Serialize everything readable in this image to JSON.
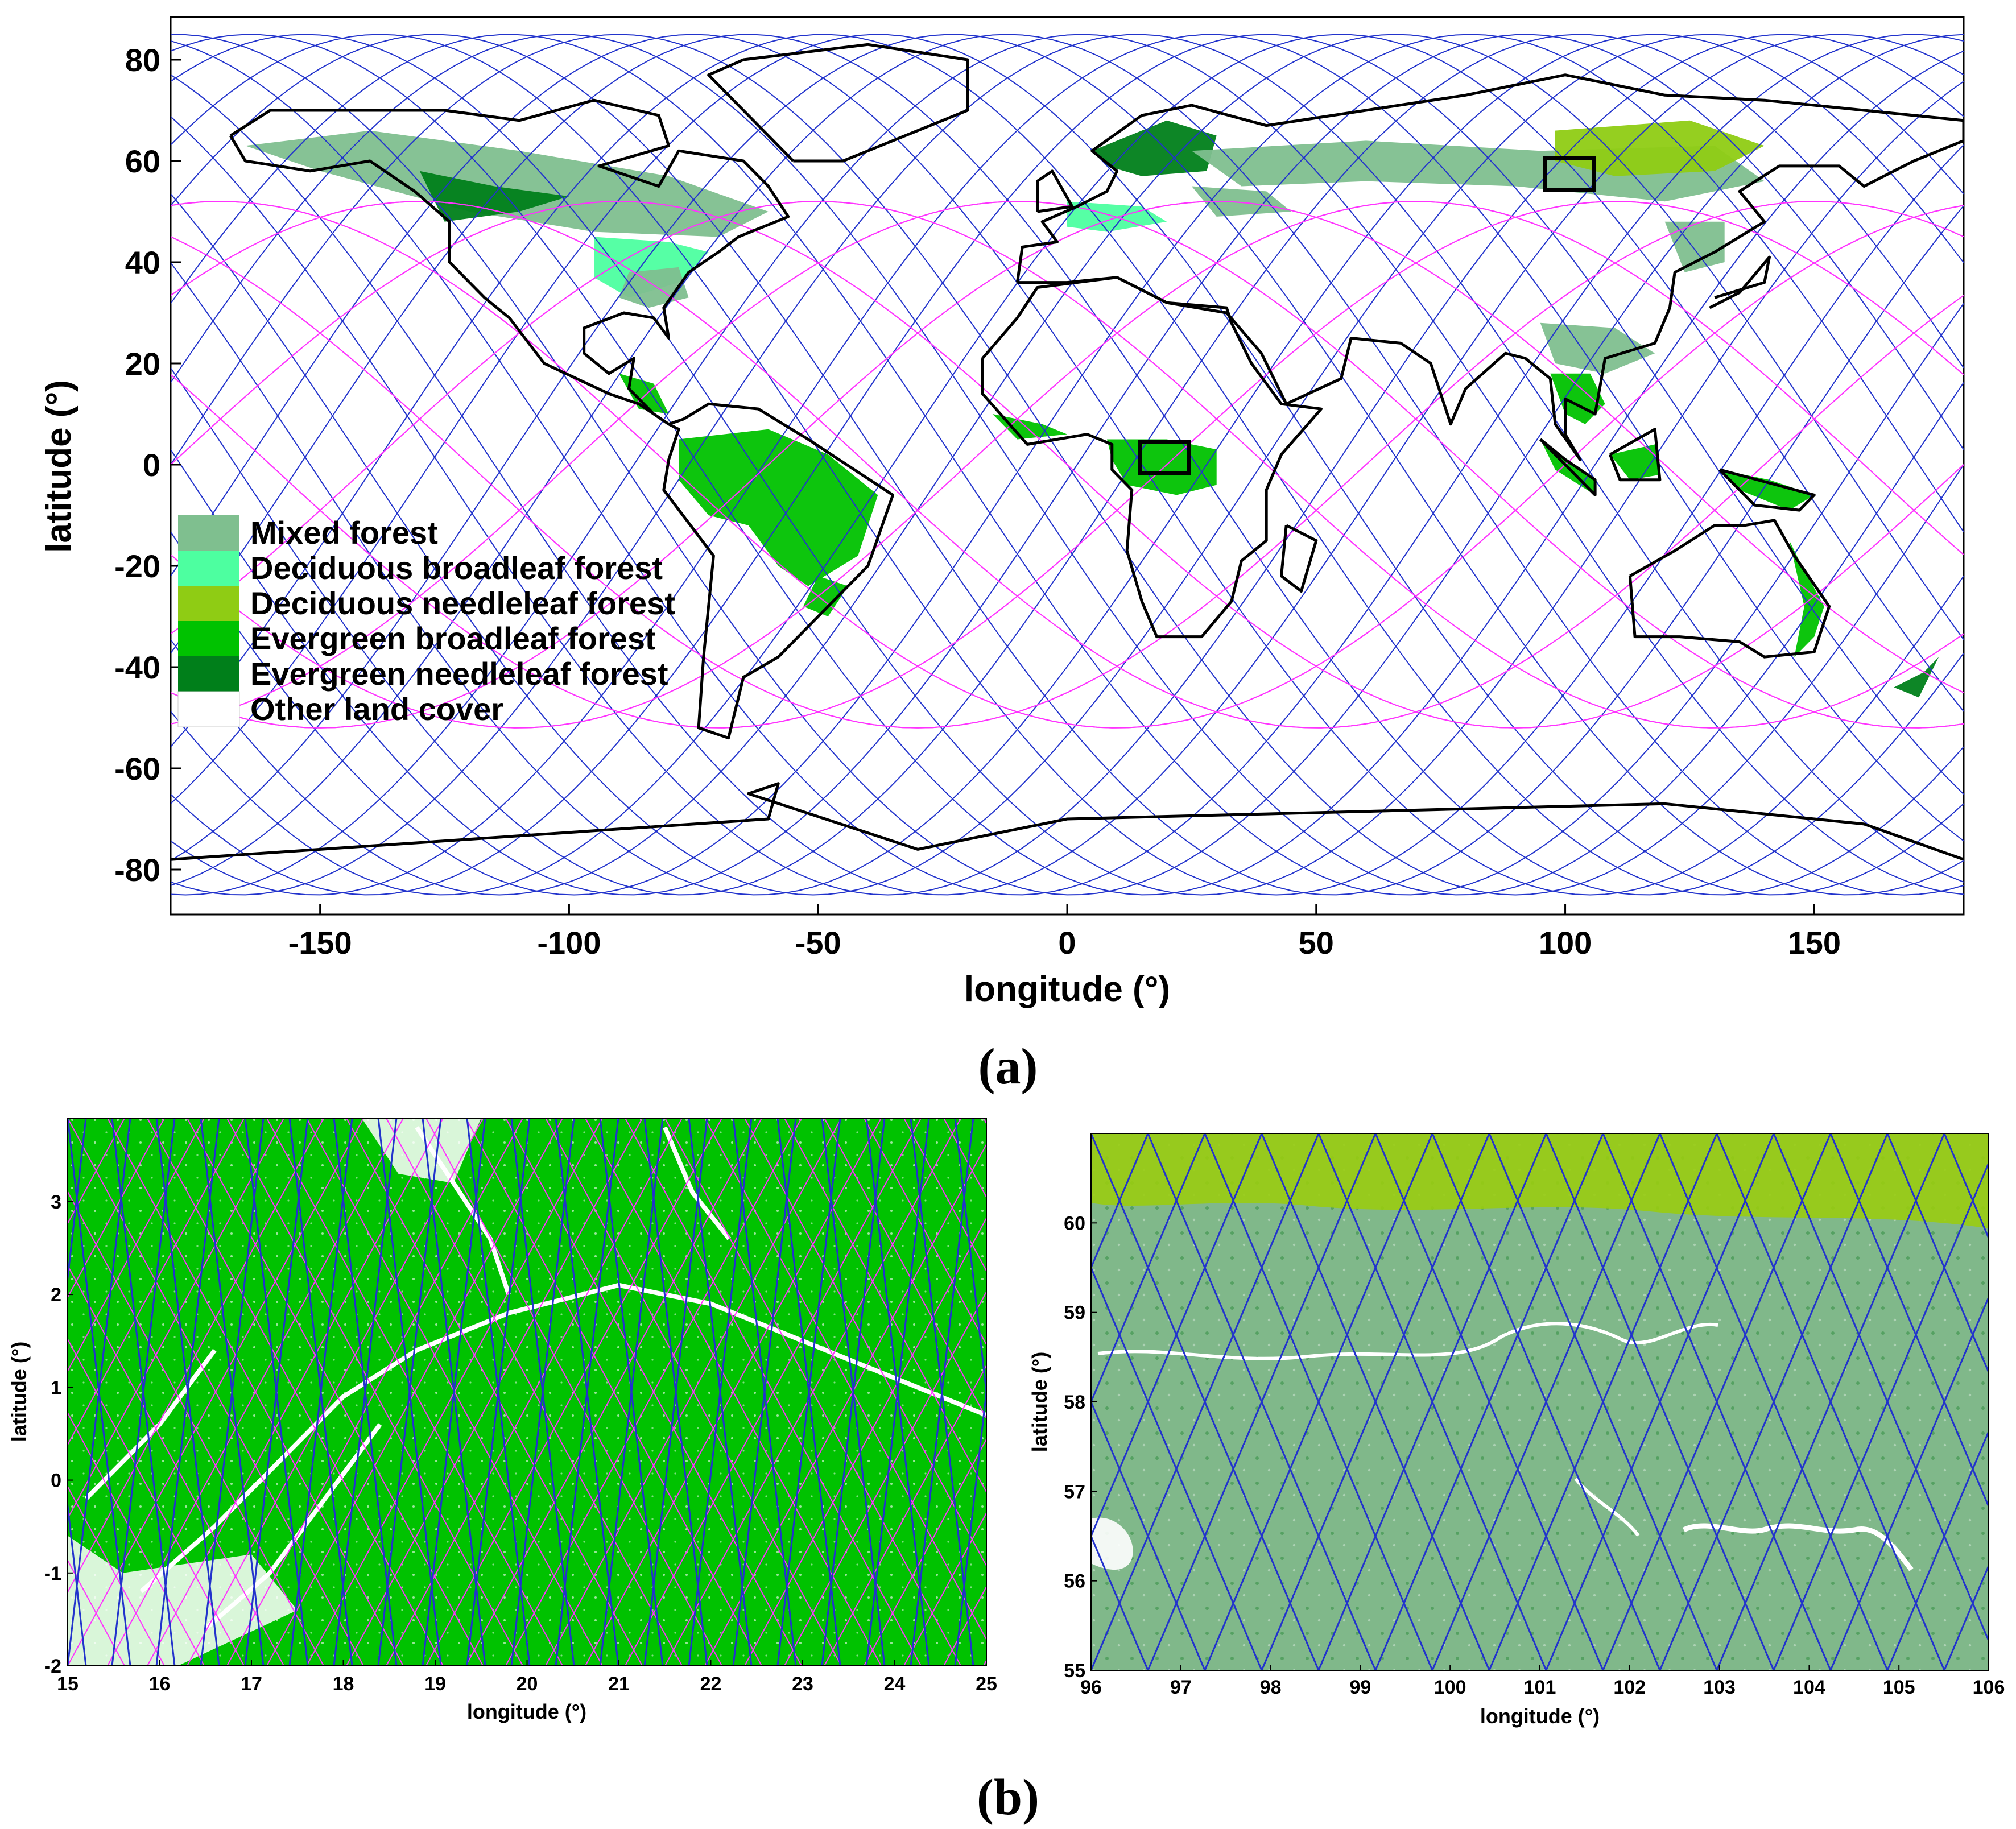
{
  "panel_a": {
    "label": "(a)",
    "label_parts": [
      "(",
      "a",
      ")"
    ],
    "xlabel": "longitude (°)",
    "ylabel": "latitude (°)",
    "xticks": [
      "-150",
      "-100",
      "-50",
      "0",
      "50",
      "100",
      "150"
    ],
    "yticks": [
      "80",
      "60",
      "40",
      "20",
      "0",
      "-20",
      "-40",
      "-60",
      "-80"
    ],
    "legend": [
      {
        "label": "Mixed forest",
        "color": "#7fbf8f"
      },
      {
        "label": "Deciduous broadleaf forest",
        "color": "#4dffa0"
      },
      {
        "label": "Deciduous needleleaf forest",
        "color": "#8fcc14"
      },
      {
        "label": "Evergreen broadleaf forest",
        "color": "#00c200"
      },
      {
        "label": "Evergreen needleleaf forest",
        "color": "#007f1a"
      },
      {
        "label": "Other land cover",
        "color": "#ffffff"
      }
    ]
  },
  "panel_b": {
    "label": "(b)",
    "label_parts": [
      "(",
      "b",
      ")"
    ],
    "left": {
      "xlabel": "longitude (°)",
      "ylabel": "latitude (°)",
      "xticks": [
        "15",
        "16",
        "17",
        "18",
        "19",
        "20",
        "21",
        "22",
        "23",
        "24",
        "25"
      ],
      "yticks": [
        "3",
        "2",
        "1",
        "0",
        "-1",
        "-2"
      ]
    },
    "right": {
      "xlabel": "longitude (°)",
      "ylabel": "latitude (°)",
      "xticks": [
        "96",
        "97",
        "98",
        "99",
        "100",
        "101",
        "102",
        "103",
        "104",
        "105",
        "106"
      ],
      "yticks": [
        "60",
        "59",
        "58",
        "57",
        "56",
        "55"
      ]
    }
  },
  "colors": {
    "track_blue": "#2233cc",
    "track_magenta": "#ff33ff",
    "coast": "#000000",
    "evergreen_broadleaf": "#00c200",
    "mixed_forest": "#80b88a",
    "deciduous_needleleaf": "#99cc11"
  }
}
